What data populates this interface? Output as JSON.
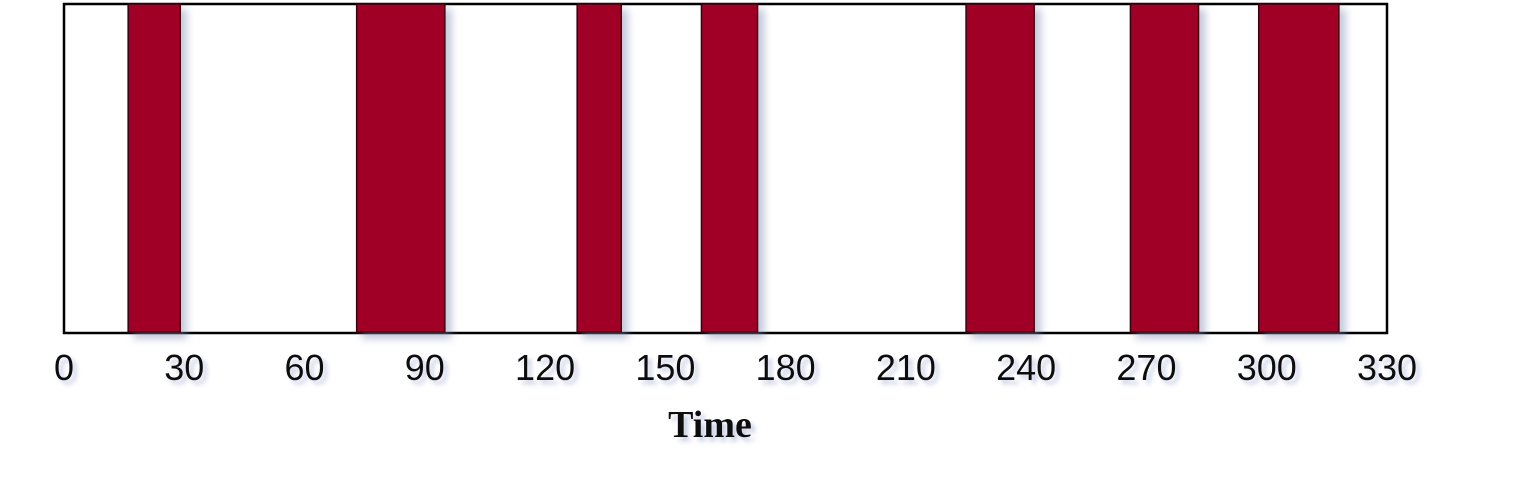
{
  "chart_data": {
    "type": "bar",
    "orientation": "horizontal-intervals",
    "title": "",
    "xlabel": "Time",
    "ylabel": "",
    "xlim": [
      0,
      330
    ],
    "xticks": [
      "0",
      "30",
      "60",
      "90",
      "120",
      "150",
      "180",
      "210",
      "240",
      "270",
      "300",
      "330"
    ],
    "grid": false,
    "legend": "none",
    "bar_color": "#a00028",
    "intervals": [
      {
        "start": 16,
        "end": 29
      },
      {
        "start": 73,
        "end": 95
      },
      {
        "start": 128,
        "end": 139
      },
      {
        "start": 159,
        "end": 173
      },
      {
        "start": 225,
        "end": 242
      },
      {
        "start": 266,
        "end": 283
      },
      {
        "start": 298,
        "end": 318
      }
    ]
  }
}
